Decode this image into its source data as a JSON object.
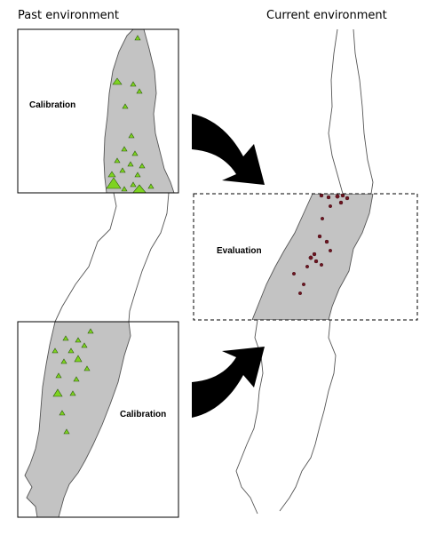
{
  "columns": {
    "left_title": "Past environment",
    "right_title": "Current environment"
  },
  "panels": {
    "top_left_label": "Calibration",
    "bottom_left_label": "Calibration",
    "right_label": "Evaluation"
  },
  "colors": {
    "land_fill": "#c3c3c3",
    "outline": "#555555",
    "calibration_marker": "#7ed321",
    "evaluation_marker": "#6e1420",
    "arrow": "#000000"
  },
  "markers": {
    "calibration_shape": "triangle",
    "evaluation_shape": "dot"
  }
}
